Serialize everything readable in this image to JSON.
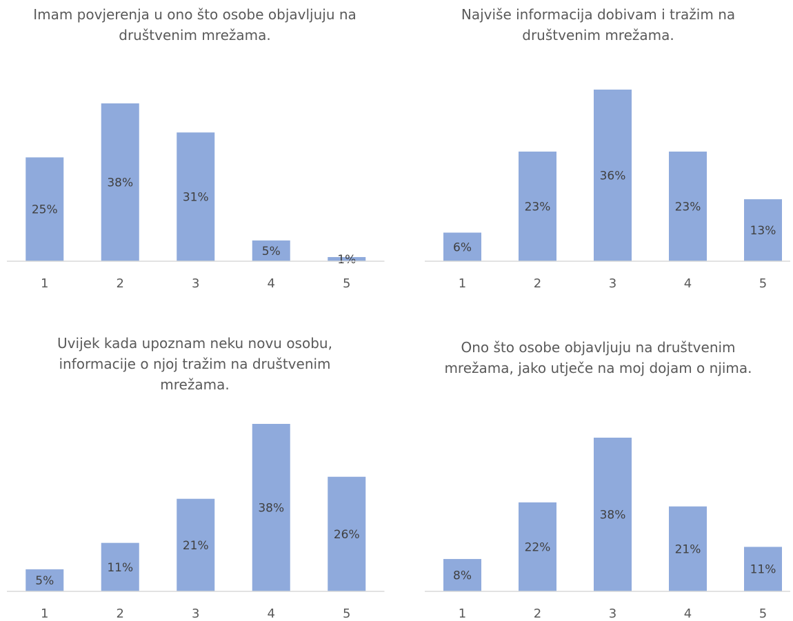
{
  "chart_data": [
    {
      "type": "bar",
      "title_lines": [
        "Imam povjerenja u ono što osobe objavljuju na",
        "društvenim mrežama."
      ],
      "categories": [
        "1",
        "2",
        "3",
        "4",
        "5"
      ],
      "values": [
        25,
        38,
        31,
        5,
        1
      ],
      "labels": [
        "25%",
        "38%",
        "31%",
        "5%",
        "1%"
      ],
      "value_unit": "%",
      "ylim": [
        0,
        42
      ],
      "bar_color": "#8faadc",
      "grid": false,
      "legend": "none"
    },
    {
      "type": "bar",
      "title_lines": [
        "Najviše informacija dobivam i tražim na",
        "društvenim mrežama."
      ],
      "categories": [
        "1",
        "2",
        "3",
        "4",
        "5"
      ],
      "values": [
        6,
        23,
        36,
        23,
        13
      ],
      "labels": [
        "6%",
        "23%",
        "36%",
        "23%",
        "13%"
      ],
      "value_unit": "%",
      "ylim": [
        0,
        40
      ],
      "bar_color": "#8faadc",
      "grid": false,
      "legend": "none"
    },
    {
      "type": "bar",
      "title_lines": [
        "Uvijek kada upoznam neku novu osobu,",
        "informacije o njoj tražim na društvenim",
        "mrežama."
      ],
      "categories": [
        "1",
        "2",
        "3",
        "4",
        "5"
      ],
      "values": [
        5,
        11,
        21,
        38,
        26
      ],
      "labels": [
        "5%",
        "11%",
        "21%",
        "38%",
        "26%"
      ],
      "value_unit": "%",
      "ylim": [
        0,
        40
      ],
      "bar_color": "#8faadc",
      "grid": false,
      "legend": "none"
    },
    {
      "type": "bar",
      "title_lines": [
        "Ono što osobe objavljuju na društvenim",
        "mrežama, jako utječe na moj dojam o njima."
      ],
      "categories": [
        "1",
        "2",
        "3",
        "4",
        "5"
      ],
      "values": [
        8,
        22,
        38,
        21,
        11
      ],
      "labels": [
        "8%",
        "22%",
        "38%",
        "21%",
        "11%"
      ],
      "value_unit": "%",
      "ylim": [
        0,
        42
      ],
      "bar_color": "#8faadc",
      "grid": false,
      "legend": "none"
    }
  ]
}
